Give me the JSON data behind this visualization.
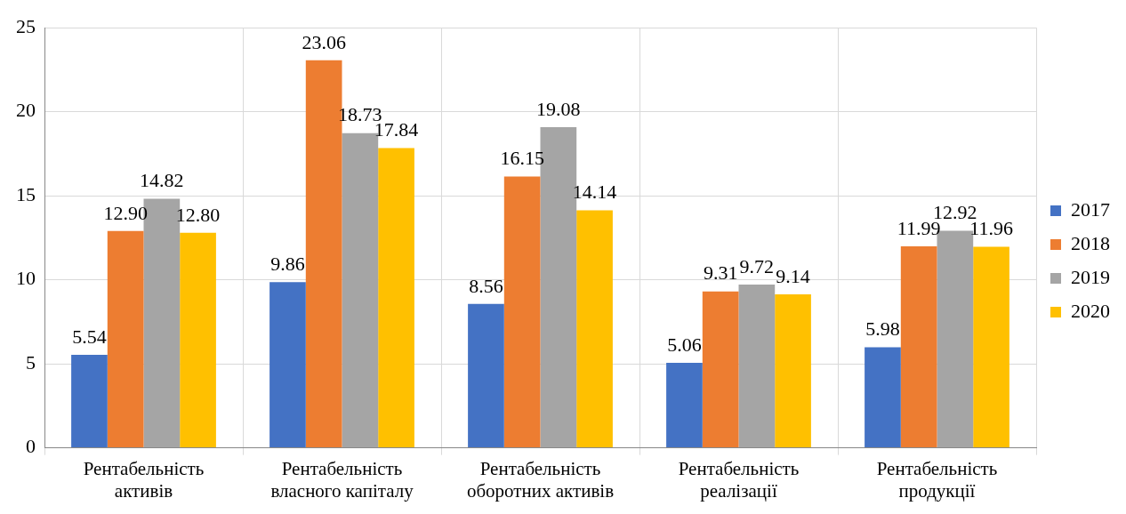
{
  "chart_data": {
    "type": "bar",
    "categories": [
      "Рентабельність активів",
      "Рентабельність власного капіталу",
      "Рентабельність оборотних активів",
      "Рентабельність реалізації",
      "Рентабельність продукції"
    ],
    "series": [
      {
        "name": "2017",
        "color": "#4472c4",
        "values": [
          5.54,
          9.86,
          8.56,
          5.06,
          5.98
        ],
        "value_labels": [
          "5.54",
          "9.86",
          "8.56",
          "5.06",
          "5.98"
        ]
      },
      {
        "name": "2018",
        "color": "#ed7d31",
        "values": [
          12.9,
          23.06,
          16.15,
          9.31,
          11.99
        ],
        "value_labels": [
          "12.90",
          "23.06",
          "16.15",
          "9.31",
          "11.99"
        ]
      },
      {
        "name": "2019",
        "color": "#a5a5a5",
        "values": [
          14.82,
          18.73,
          19.08,
          9.72,
          12.92
        ],
        "value_labels": [
          "14.82",
          "18.73",
          "19.08",
          "9.72",
          "12.92"
        ]
      },
      {
        "name": "2020",
        "color": "#ffc000",
        "values": [
          12.8,
          17.84,
          14.14,
          9.14,
          11.96
        ],
        "value_labels": [
          "12.80",
          "17.84",
          "14.14",
          "9.14",
          "11.96"
        ]
      }
    ],
    "ylim": [
      0,
      25
    ],
    "yticks": [
      0,
      5,
      10,
      15,
      20,
      25
    ],
    "grid": true,
    "legend": "right"
  }
}
